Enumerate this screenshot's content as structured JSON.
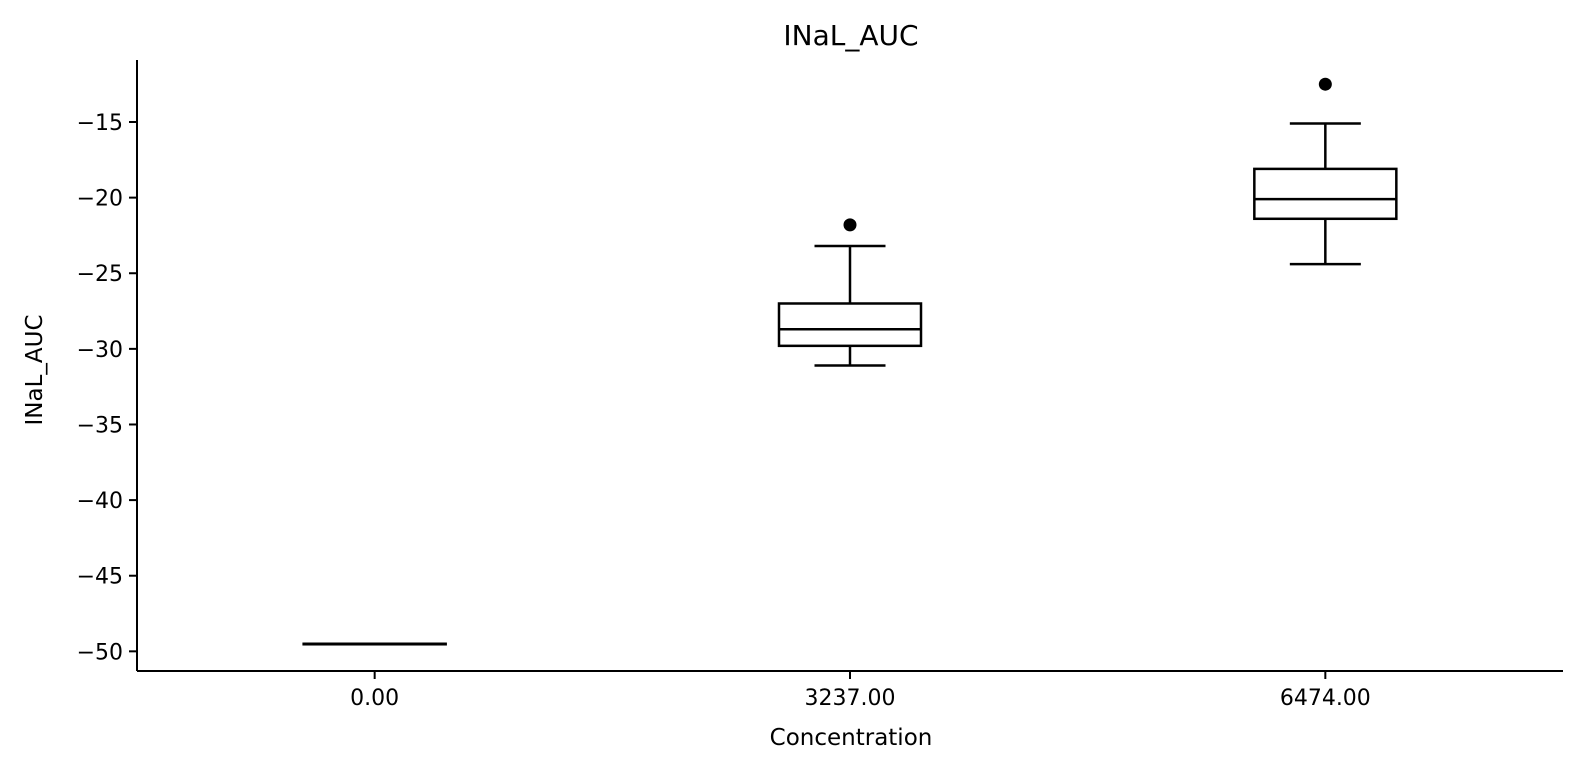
{
  "chart_data": {
    "type": "box",
    "title": "INaL_AUC",
    "xlabel": "Concentration",
    "ylabel": "INaL_AUC",
    "categories": [
      "0.00",
      "3237.00",
      "6474.00"
    ],
    "ylim": [
      -51.3,
      -10.9
    ],
    "yticks": [
      -15,
      -20,
      -25,
      -30,
      -35,
      -40,
      -45,
      -50
    ],
    "ytick_labels": [
      "−15",
      "−20",
      "−25",
      "−30",
      "−35",
      "−40",
      "−45",
      "−50"
    ],
    "boxes": [
      {
        "category": "0.00",
        "whisker_low": -49.5,
        "q1": -49.5,
        "median": -49.5,
        "q3": -49.5,
        "whisker_high": -49.5,
        "outliers": []
      },
      {
        "category": "3237.00",
        "whisker_low": -31.1,
        "q1": -29.8,
        "median": -28.7,
        "q3": -27.0,
        "whisker_high": -23.2,
        "outliers": [
          -21.8
        ]
      },
      {
        "category": "6474.00",
        "whisker_low": -24.4,
        "q1": -21.4,
        "median": -20.1,
        "q3": -18.1,
        "whisker_high": -15.1,
        "outliers": [
          -12.5
        ]
      }
    ],
    "grid": false,
    "colors": {
      "stroke": "#000000",
      "background": "#ffffff"
    }
  }
}
